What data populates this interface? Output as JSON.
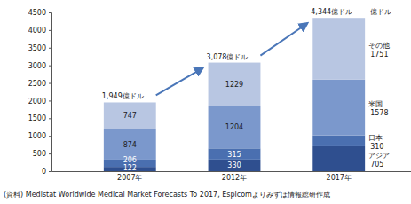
{
  "chart_data": {
    "type": "bar",
    "stacked": true,
    "data_labels": true,
    "grid": false,
    "categories": [
      "2007年",
      "2012年",
      "2017年"
    ],
    "series": [
      {
        "name": "アジア",
        "color": "#2f4f8f",
        "values": [
          122,
          330,
          705
        ]
      },
      {
        "name": "日本",
        "color": "#4a6fb0",
        "values": [
          206,
          315,
          310
        ]
      },
      {
        "name": "米国",
        "color": "#7b98cc",
        "values": [
          874,
          1204,
          1578
        ]
      },
      {
        "name": "その他",
        "color": "#b8c6e2",
        "values": [
          747,
          1229,
          1751
        ]
      }
    ],
    "total_values": [
      1949,
      3078,
      4344
    ],
    "total_labels": [
      "1,949億ドル",
      "3,078億ドル",
      "4,344億ドル"
    ],
    "unit": "億ドル",
    "ylim": [
      0,
      4500
    ],
    "yticks": [
      0,
      500,
      1000,
      1500,
      2000,
      2500,
      3000,
      3500,
      4000,
      4500
    ],
    "source": "(資料) Medistat Worldwide Medical Market Forecasts To 2017, Espicomよりみずほ情報総研作成"
  }
}
